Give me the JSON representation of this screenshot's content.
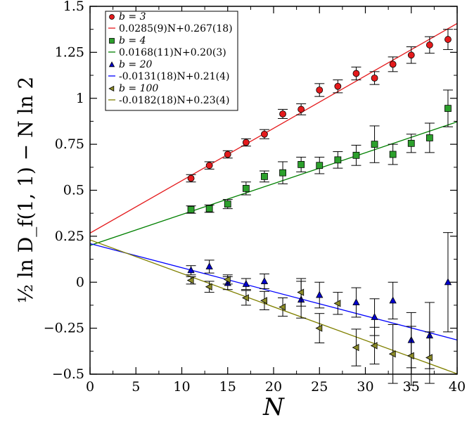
{
  "chart_data": {
    "type": "scatter",
    "xlabel": "N",
    "ylabel": "½ ln D_f(1, 1) − N ln 2",
    "xlim": [
      0,
      40
    ],
    "ylim": [
      -0.5,
      1.5
    ],
    "x_ticks": [
      "0",
      "5",
      "10",
      "15",
      "20",
      "25",
      "30",
      "35",
      "40"
    ],
    "y_ticks": [
      "−0.5",
      "−0.25",
      "0",
      "0.25",
      "0.5",
      "0.75",
      "1",
      "1.25",
      "1.5"
    ],
    "grid": false,
    "legend_position": "top-left",
    "series": [
      {
        "name": "b = 3",
        "marker": "circle",
        "color": "#e41a1c",
        "fit_label": "0.0285(9)N+0.267(18)",
        "fit": {
          "slope": 0.0285,
          "intercept": 0.267
        },
        "fit_color": "#e41a1c",
        "x": [
          11,
          13,
          15,
          17,
          19,
          21,
          23,
          25,
          27,
          29,
          31,
          33,
          35,
          37,
          39
        ],
        "y": [
          0.565,
          0.635,
          0.695,
          0.76,
          0.805,
          0.915,
          0.94,
          1.045,
          1.065,
          1.135,
          1.11,
          1.185,
          1.235,
          1.29,
          1.32
        ],
        "err": [
          0.02,
          0.02,
          0.02,
          0.02,
          0.025,
          0.025,
          0.03,
          0.035,
          0.035,
          0.035,
          0.035,
          0.04,
          0.045,
          0.045,
          0.055
        ]
      },
      {
        "name": "b = 4",
        "marker": "square",
        "color": "#2ca02c",
        "fit_label": "0.0168(11)N+0.20(3)",
        "fit": {
          "slope": 0.0168,
          "intercept": 0.2
        },
        "fit_color": "#008000",
        "x": [
          11,
          13,
          15,
          17,
          19,
          21,
          23,
          25,
          27,
          29,
          31,
          33,
          35,
          37,
          39
        ],
        "y": [
          0.395,
          0.4,
          0.425,
          0.51,
          0.575,
          0.595,
          0.64,
          0.635,
          0.665,
          0.69,
          0.75,
          0.695,
          0.755,
          0.785,
          0.945
        ],
        "err": [
          0.02,
          0.02,
          0.025,
          0.035,
          0.03,
          0.06,
          0.04,
          0.045,
          0.045,
          0.055,
          0.1,
          0.055,
          0.05,
          0.08,
          0.1
        ]
      },
      {
        "name": "b = 20",
        "marker": "triangle-up",
        "color": "#0000cc",
        "fit_label": "-0.0131(18)N+0.21(4)",
        "fit": {
          "slope": -0.0131,
          "intercept": 0.21
        },
        "fit_color": "#0000ff",
        "x": [
          11,
          13,
          15,
          17,
          19,
          23,
          25,
          29,
          31,
          33,
          35,
          37,
          39
        ],
        "y": [
          0.065,
          0.085,
          -0.005,
          -0.01,
          0.005,
          -0.095,
          -0.07,
          -0.11,
          -0.19,
          -0.1,
          -0.315,
          -0.29,
          0.0
        ],
        "err": [
          0.025,
          0.035,
          0.035,
          0.03,
          0.04,
          0.1,
          0.07,
          0.08,
          0.1,
          0.1,
          0.15,
          0.18,
          0.27
        ]
      },
      {
        "name": "b = 100",
        "marker": "triangle-left",
        "color": "#8b8b28",
        "fit_label": "-0.0182(18)N+0.23(4)",
        "fit": {
          "slope": -0.0182,
          "intercept": 0.23
        },
        "fit_color": "#808000",
        "x": [
          11,
          13,
          15,
          17,
          19,
          21,
          23,
          25,
          27,
          29,
          31,
          33,
          35,
          37
        ],
        "y": [
          0.01,
          -0.025,
          0.015,
          -0.085,
          -0.1,
          -0.135,
          -0.055,
          -0.25,
          -0.115,
          -0.355,
          -0.345,
          -0.39,
          -0.4,
          -0.41
        ],
        "err": [
          0.02,
          0.03,
          0.025,
          0.04,
          0.05,
          0.05,
          0.075,
          0.08,
          0.06,
          0.1,
          0.1,
          0.16,
          0.16,
          0.14
        ]
      }
    ]
  }
}
